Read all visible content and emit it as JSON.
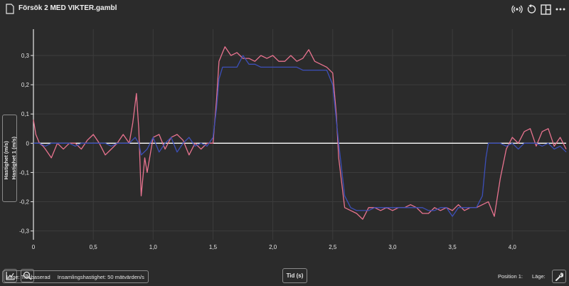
{
  "window": {
    "title": "Försök 2 MED VIKTER.gambl"
  },
  "toolbar": {
    "icons": [
      "file-icon",
      "broadcast-icon",
      "undo-icon",
      "layout-icon",
      "more-icon"
    ]
  },
  "chart_data": {
    "type": "line",
    "ylabel_1": "Hastighet 1 (m/s)",
    "ylabel_2": "Hastighet (m/s)",
    "xlabel": "Tid (s)",
    "xlim": [
      0,
      4.45
    ],
    "ylim": [
      -0.33,
      0.39
    ],
    "xticks": [
      "0",
      "0,5",
      "1,0",
      "1,5",
      "2,0",
      "2,5",
      "3,0",
      "3,5",
      "4,0"
    ],
    "xtick_values": [
      0,
      0.5,
      1.0,
      1.5,
      2.0,
      2.5,
      3.0,
      3.5,
      4.0
    ],
    "yticks": [
      "0,3",
      "0,2",
      "0,1",
      "0",
      "-0,1",
      "-0,2",
      "-0,3"
    ],
    "ytick_values": [
      0.3,
      0.2,
      0.1,
      0,
      -0.1,
      -0.2,
      -0.3
    ],
    "grid": true,
    "series": [
      {
        "color": "#e8738f",
        "x": [
          0,
          0.02,
          0.05,
          0.08,
          0.1,
          0.15,
          0.2,
          0.25,
          0.3,
          0.35,
          0.4,
          0.45,
          0.5,
          0.55,
          0.6,
          0.65,
          0.7,
          0.75,
          0.8,
          0.83,
          0.86,
          0.88,
          0.9,
          0.93,
          0.95,
          1.0,
          1.05,
          1.1,
          1.15,
          1.2,
          1.25,
          1.3,
          1.35,
          1.4,
          1.45,
          1.5,
          1.53,
          1.55,
          1.58,
          1.6,
          1.65,
          1.7,
          1.75,
          1.8,
          1.85,
          1.9,
          1.95,
          2.0,
          2.05,
          2.1,
          2.15,
          2.2,
          2.25,
          2.3,
          2.35,
          2.4,
          2.45,
          2.5,
          2.53,
          2.55,
          2.6,
          2.65,
          2.7,
          2.75,
          2.8,
          2.85,
          2.9,
          2.95,
          3.0,
          3.05,
          3.1,
          3.15,
          3.2,
          3.25,
          3.3,
          3.35,
          3.4,
          3.45,
          3.5,
          3.55,
          3.6,
          3.65,
          3.7,
          3.75,
          3.8,
          3.85,
          3.9,
          3.95,
          4.0,
          4.05,
          4.1,
          4.15,
          4.2,
          4.25,
          4.3,
          4.35,
          4.4,
          4.45
        ],
        "y": [
          0.08,
          0.03,
          0.0,
          -0.01,
          -0.02,
          -0.05,
          0.0,
          -0.02,
          0.0,
          0.0,
          -0.02,
          0.01,
          0.03,
          0.0,
          -0.04,
          -0.02,
          0.0,
          0.03,
          0.0,
          0.07,
          0.17,
          0.05,
          -0.18,
          -0.05,
          -0.1,
          0.02,
          0.03,
          -0.02,
          0.02,
          0.03,
          0.01,
          -0.04,
          0.0,
          -0.02,
          0.0,
          0.0,
          0.15,
          0.28,
          0.31,
          0.33,
          0.3,
          0.31,
          0.29,
          0.29,
          0.28,
          0.3,
          0.29,
          0.3,
          0.28,
          0.28,
          0.3,
          0.28,
          0.29,
          0.32,
          0.28,
          0.27,
          0.26,
          0.24,
          0.1,
          -0.05,
          -0.22,
          -0.23,
          -0.24,
          -0.26,
          -0.22,
          -0.22,
          -0.23,
          -0.22,
          -0.23,
          -0.22,
          -0.22,
          -0.21,
          -0.22,
          -0.24,
          -0.24,
          -0.22,
          -0.23,
          -0.22,
          -0.23,
          -0.21,
          -0.23,
          -0.22,
          -0.22,
          -0.21,
          -0.2,
          -0.25,
          -0.12,
          -0.02,
          0.02,
          0.0,
          0.04,
          0.05,
          -0.01,
          0.04,
          0.05,
          -0.01,
          0.02,
          -0.02
        ]
      },
      {
        "color": "#3c4fb8",
        "x": [
          0,
          0.05,
          0.1,
          0.15,
          0.2,
          0.25,
          0.3,
          0.35,
          0.4,
          0.45,
          0.5,
          0.55,
          0.6,
          0.65,
          0.7,
          0.75,
          0.8,
          0.85,
          0.88,
          0.9,
          0.95,
          1.0,
          1.05,
          1.1,
          1.15,
          1.2,
          1.25,
          1.3,
          1.35,
          1.4,
          1.45,
          1.5,
          1.53,
          1.55,
          1.58,
          1.6,
          1.65,
          1.7,
          1.75,
          1.8,
          1.85,
          1.9,
          1.95,
          2.0,
          2.05,
          2.1,
          2.15,
          2.2,
          2.25,
          2.3,
          2.35,
          2.4,
          2.45,
          2.5,
          2.53,
          2.55,
          2.6,
          2.65,
          2.7,
          2.75,
          2.8,
          2.85,
          2.9,
          2.95,
          3.0,
          3.05,
          3.1,
          3.15,
          3.2,
          3.25,
          3.3,
          3.35,
          3.4,
          3.45,
          3.5,
          3.55,
          3.6,
          3.65,
          3.7,
          3.75,
          3.78,
          3.8,
          3.85,
          3.9,
          3.95,
          4.0,
          4.05,
          4.1,
          4.15,
          4.2,
          4.25,
          4.3,
          4.35,
          4.4,
          4.45
        ],
        "y": [
          0.0,
          0.0,
          -0.01,
          0.0,
          0.0,
          0.0,
          0.0,
          -0.01,
          0.0,
          0.0,
          0.0,
          0.0,
          0.0,
          -0.01,
          0.0,
          0.0,
          0.0,
          0.02,
          0.0,
          -0.04,
          -0.02,
          0.02,
          -0.03,
          0.0,
          0.02,
          -0.03,
          0.0,
          0.02,
          -0.01,
          0.0,
          -0.01,
          0.02,
          0.12,
          0.22,
          0.26,
          0.26,
          0.26,
          0.26,
          0.3,
          0.27,
          0.27,
          0.26,
          0.26,
          0.26,
          0.26,
          0.26,
          0.26,
          0.26,
          0.25,
          0.25,
          0.25,
          0.25,
          0.25,
          0.2,
          0.08,
          0.0,
          -0.18,
          -0.22,
          -0.23,
          -0.23,
          -0.23,
          -0.22,
          -0.22,
          -0.22,
          -0.22,
          -0.22,
          -0.22,
          -0.22,
          -0.22,
          -0.22,
          -0.23,
          -0.23,
          -0.22,
          -0.22,
          -0.25,
          -0.22,
          -0.22,
          -0.22,
          -0.22,
          -0.18,
          -0.05,
          0.0,
          0.0,
          0.0,
          -0.01,
          0.0,
          -0.02,
          0.0,
          0.0,
          0.0,
          -0.01,
          0.0,
          -0.02,
          -0.01,
          -0.03
        ]
      }
    ]
  },
  "controls": {
    "fit_icon": "chart-fit-icon",
    "zoom_icon": "zoom-icon"
  },
  "status": {
    "mode": "Läge: Tidsbaserad",
    "rate": "Insamlingshastighet: 50 mätvärden/s",
    "position": "Position 1:",
    "mode_short": "Läge:"
  }
}
